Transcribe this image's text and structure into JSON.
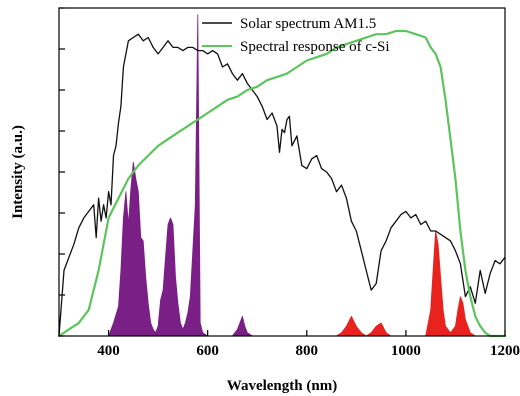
{
  "chart_data": {
    "type": "line",
    "xlabel": "Wavelength (nm)",
    "ylabel": "Intensity (a.u.)",
    "xlim": [
      300,
      1200
    ],
    "ylim": [
      0,
      100
    ],
    "xticks": [
      300,
      400,
      600,
      800,
      1000,
      1200
    ],
    "xtick_labels": [
      "",
      "400",
      "600",
      "800",
      "1000",
      "1200"
    ],
    "y_tick_values": [
      0,
      12.5,
      25,
      37.5,
      50,
      62.5,
      75,
      87.5,
      100
    ],
    "legend_position": "top-right",
    "colors": {
      "solar": "#111111",
      "csi": "#5cc45c",
      "emission_visible": "#7a1f86",
      "emission_nir": "#e8231e"
    },
    "series": [
      {
        "name": "Solar spectrum AM1.5",
        "color": "#111111",
        "x": [
          300,
          310,
          320,
          330,
          340,
          350,
          360,
          370,
          375,
          380,
          385,
          390,
          395,
          400,
          405,
          410,
          415,
          420,
          425,
          430,
          440,
          450,
          460,
          470,
          480,
          490,
          500,
          510,
          520,
          530,
          540,
          550,
          560,
          570,
          580,
          590,
          600,
          610,
          620,
          630,
          640,
          650,
          660,
          670,
          680,
          690,
          700,
          710,
          720,
          730,
          740,
          745,
          750,
          755,
          760,
          765,
          770,
          780,
          790,
          800,
          810,
          820,
          830,
          840,
          850,
          860,
          870,
          880,
          890,
          900,
          910,
          920,
          930,
          940,
          950,
          960,
          970,
          980,
          990,
          1000,
          1010,
          1020,
          1030,
          1040,
          1050,
          1060,
          1070,
          1080,
          1090,
          1100,
          1110,
          1120,
          1130,
          1140,
          1150,
          1160,
          1170,
          1180,
          1190,
          1200
        ],
        "y": [
          0,
          20,
          24,
          28,
          33,
          36,
          38,
          40,
          30,
          42,
          35,
          40,
          36,
          44,
          40,
          55,
          58,
          65,
          70,
          82,
          90,
          91,
          92,
          90,
          91,
          88,
          86,
          88,
          90,
          88,
          88,
          87,
          88,
          88,
          87,
          87,
          86,
          87,
          86,
          82,
          83,
          80,
          78,
          80,
          77,
          75,
          73,
          70,
          66,
          68,
          64,
          56,
          63,
          62,
          66,
          67,
          58,
          61,
          52,
          51,
          54,
          55,
          51,
          50,
          48,
          44,
          46,
          42,
          35,
          32,
          26,
          20,
          14,
          16,
          26,
          29,
          33,
          35,
          37,
          38,
          36,
          37,
          34,
          35,
          32,
          32,
          31,
          30,
          29,
          26,
          22,
          12,
          15,
          10,
          20,
          13,
          19,
          23,
          22,
          24
        ],
        "name_shown_in_legend": true
      },
      {
        "name": "Spectral response of c-Si",
        "color": "#5cc45c",
        "x": [
          300,
          320,
          340,
          360,
          380,
          400,
          420,
          440,
          460,
          480,
          500,
          520,
          540,
          560,
          580,
          600,
          620,
          640,
          660,
          680,
          700,
          720,
          740,
          760,
          780,
          800,
          820,
          840,
          860,
          880,
          900,
          920,
          940,
          960,
          980,
          1000,
          1020,
          1040,
          1050,
          1060,
          1070,
          1080,
          1090,
          1100,
          1110,
          1120,
          1130,
          1140,
          1150,
          1160,
          1170,
          1180,
          1190,
          1200
        ],
        "y": [
          0,
          2,
          4,
          8,
          20,
          36,
          42,
          48,
          52,
          55,
          58,
          60,
          62,
          64,
          66,
          68,
          70,
          72,
          73,
          75,
          76,
          78,
          79,
          80,
          82,
          84,
          85,
          86,
          88,
          89,
          90,
          91,
          92,
          92,
          93,
          93,
          92,
          91,
          88,
          86,
          82,
          72,
          60,
          48,
          32,
          20,
          12,
          6,
          3,
          1,
          0,
          0,
          0,
          0
        ]
      },
      {
        "name": "",
        "kind": "filled-emission",
        "color": "#7a1f86",
        "x": [
          400,
          410,
          420,
          425,
          430,
          435,
          440,
          445,
          450,
          455,
          460,
          465,
          470,
          475,
          480,
          485,
          490,
          495,
          500,
          505,
          510,
          515,
          520,
          525,
          530,
          535,
          540,
          545,
          550,
          555,
          560,
          565,
          570,
          575,
          580,
          585,
          590,
          600,
          610,
          620,
          640,
          650,
          660,
          665,
          670,
          675,
          680,
          690,
          700
        ],
        "y": [
          0,
          4,
          9,
          20,
          36,
          44,
          34,
          45,
          53,
          48,
          44,
          30,
          29,
          18,
          10,
          4,
          2,
          1,
          3,
          11,
          14,
          24,
          34,
          36,
          34,
          18,
          10,
          4,
          2,
          4,
          7,
          12,
          26,
          40,
          98,
          4,
          1,
          0,
          0,
          0,
          0,
          0,
          2,
          4,
          6,
          3,
          1,
          0,
          0
        ]
      },
      {
        "name": "",
        "kind": "filled-emission",
        "color": "#e8231e",
        "x": [
          840,
          850,
          860,
          870,
          880,
          890,
          900,
          910,
          920,
          930,
          940,
          950,
          960,
          970,
          980,
          990,
          1000,
          1010,
          1020,
          1030,
          1040,
          1050,
          1055,
          1060,
          1065,
          1070,
          1075,
          1080,
          1090,
          1100,
          1105,
          1110,
          1115,
          1120,
          1130,
          1140,
          1150
        ],
        "y": [
          0,
          0,
          0,
          1,
          3,
          6,
          3,
          1,
          0,
          1,
          3,
          4,
          1,
          0,
          0,
          0,
          0,
          0,
          0,
          0,
          0,
          8,
          20,
          32,
          28,
          18,
          8,
          3,
          1,
          3,
          8,
          12,
          10,
          5,
          1,
          0,
          0
        ]
      }
    ]
  }
}
